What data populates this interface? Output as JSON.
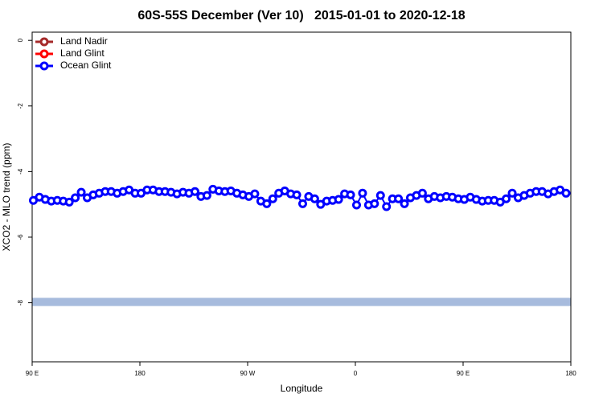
{
  "chart_data": {
    "type": "line",
    "title": "60S-55S December (Ver 10)   2015-01-01 to 2020-12-18",
    "x_label": "Longitude",
    "y_label": "XCO2 - MLO trend (ppm)",
    "xlim": [
      90,
      540
    ],
    "xticks": [
      {
        "value": 90,
        "label": "90 E"
      },
      180,
      {
        "value": 270,
        "label": "90 W"
      },
      {
        "value": 360,
        "label": "0"
      },
      {
        "value": 450,
        "label": "90 E"
      },
      {
        "value": 540,
        "label": "180"
      }
    ],
    "ylim": [
      -9.8,
      0.25
    ],
    "yticks": [
      0,
      -2,
      -4,
      -6,
      -8
    ],
    "legend": "top-left",
    "band": {
      "ylim": [
        -8.1,
        -7.85
      ],
      "color": "#a7bbdd"
    },
    "x": [
      91,
      96,
      101,
      106,
      111,
      116,
      121,
      126,
      131,
      136,
      141,
      146,
      151,
      156,
      161,
      166,
      171,
      176,
      181,
      186,
      191,
      196,
      201,
      206,
      211,
      216,
      221,
      226,
      231,
      236,
      241,
      246,
      251,
      256,
      261,
      266,
      271,
      276,
      281,
      286,
      291,
      296,
      301,
      306,
      311,
      316,
      321,
      326,
      331,
      336,
      341,
      346,
      351,
      356,
      361,
      366,
      371,
      376,
      381,
      386,
      391,
      396,
      401,
      406,
      411,
      416,
      421,
      426,
      431,
      436,
      441,
      446,
      451,
      456,
      461,
      466,
      471,
      476,
      481,
      486,
      491,
      496,
      501,
      506,
      511,
      516,
      521,
      526,
      531,
      536
    ],
    "series": [
      {
        "name": "Land Nadir",
        "color": "#a52a2a",
        "values": [
          null,
          null,
          null,
          null,
          null,
          null,
          null,
          null,
          null,
          null,
          null,
          null,
          null,
          null,
          null,
          null,
          null,
          null,
          null,
          null,
          null,
          null,
          null,
          null,
          null,
          null,
          null,
          null,
          null,
          null,
          null,
          null,
          null,
          null,
          null,
          null,
          null,
          null,
          null,
          null,
          null,
          null,
          null,
          null,
          null,
          null,
          null,
          null,
          null,
          null,
          null,
          null,
          null,
          null,
          null,
          null,
          null,
          null,
          null,
          null,
          null,
          null,
          null,
          null,
          null,
          null,
          null,
          null,
          null,
          null,
          null,
          null,
          null,
          null,
          null,
          null,
          null,
          null,
          null,
          null,
          null,
          null,
          null,
          null,
          null,
          null,
          null,
          null,
          null,
          null
        ]
      },
      {
        "name": "Land Glint",
        "color": "#ff0000",
        "values": [
          null,
          null,
          null,
          null,
          null,
          null,
          null,
          null,
          null,
          null,
          null,
          null,
          null,
          null,
          null,
          null,
          null,
          null,
          null,
          null,
          null,
          null,
          null,
          null,
          null,
          null,
          null,
          null,
          null,
          null,
          null,
          null,
          null,
          null,
          null,
          null,
          null,
          null,
          null,
          null,
          null,
          null,
          null,
          null,
          null,
          null,
          null,
          null,
          null,
          null,
          null,
          null,
          null,
          null,
          null,
          null,
          null,
          null,
          null,
          null,
          null,
          null,
          null,
          null,
          null,
          null,
          null,
          null,
          null,
          null,
          null,
          null,
          null,
          null,
          null,
          null,
          null,
          null,
          null,
          null,
          null,
          null,
          null,
          null,
          null,
          null,
          null,
          null,
          null,
          null
        ]
      },
      {
        "name": "Ocean Glint",
        "color": "#0000ff",
        "values": [
          -4.88,
          -4.78,
          -4.85,
          -4.9,
          -4.88,
          -4.9,
          -4.93,
          -4.8,
          -4.63,
          -4.8,
          -4.71,
          -4.66,
          -4.61,
          -4.61,
          -4.66,
          -4.61,
          -4.56,
          -4.66,
          -4.66,
          -4.56,
          -4.56,
          -4.61,
          -4.61,
          -4.63,
          -4.68,
          -4.63,
          -4.66,
          -4.61,
          -4.76,
          -4.73,
          -4.54,
          -4.59,
          -4.61,
          -4.59,
          -4.66,
          -4.71,
          -4.76,
          -4.68,
          -4.9,
          -4.98,
          -4.83,
          -4.66,
          -4.59,
          -4.68,
          -4.71,
          -4.98,
          -4.76,
          -4.83,
          -5.0,
          -4.9,
          -4.88,
          -4.85,
          -4.68,
          -4.71,
          -5.02,
          -4.66,
          -5.02,
          -4.98,
          -4.73,
          -5.07,
          -4.83,
          -4.83,
          -4.98,
          -4.8,
          -4.73,
          -4.66,
          -4.83,
          -4.76,
          -4.8,
          -4.76,
          -4.78,
          -4.83,
          -4.85,
          -4.78,
          -4.85,
          -4.9,
          -4.88,
          -4.88,
          -4.93,
          -4.83,
          -4.66,
          -4.8,
          -4.73,
          -4.66,
          -4.61,
          -4.61,
          -4.68,
          -4.61,
          -4.56,
          -4.66
        ]
      }
    ]
  }
}
